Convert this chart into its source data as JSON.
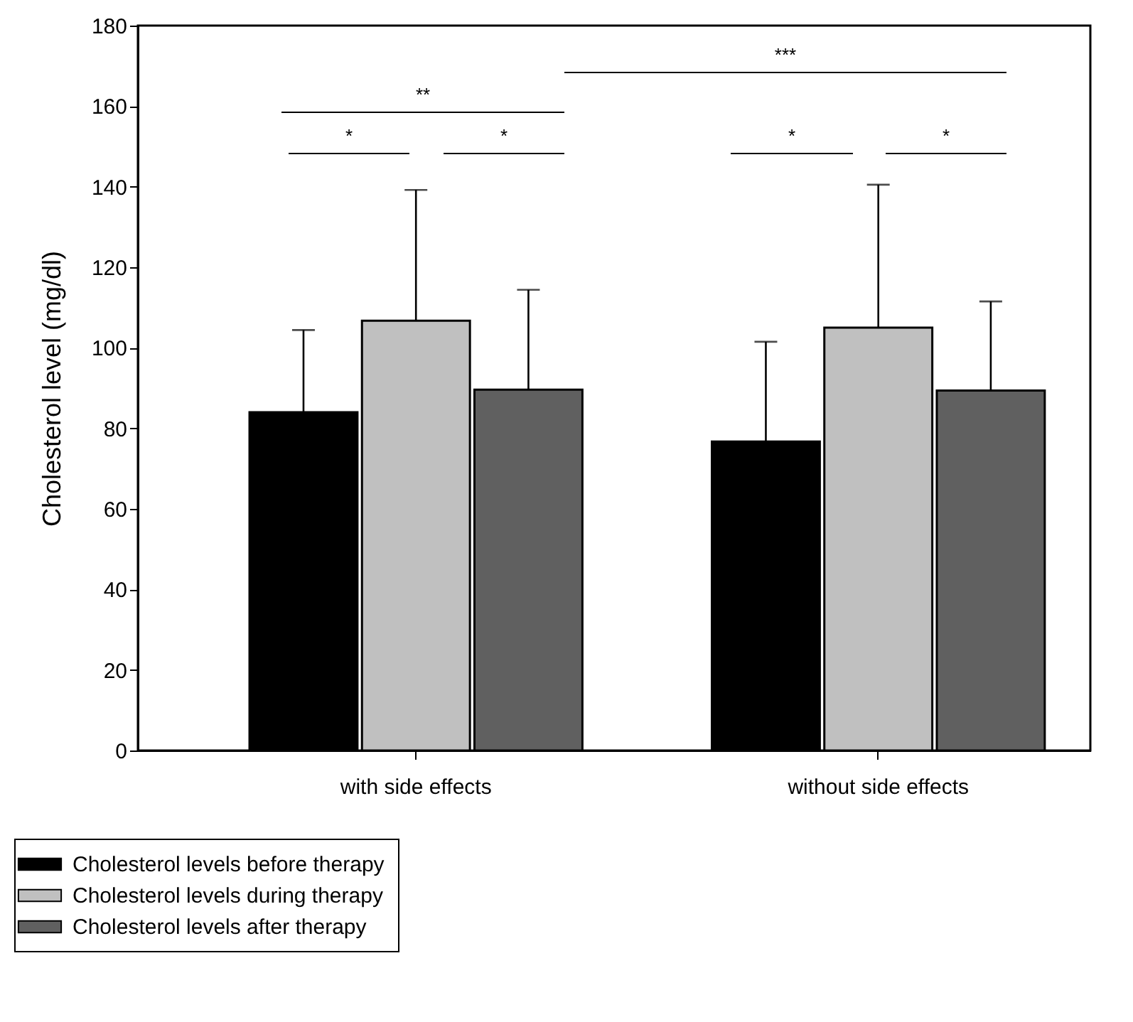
{
  "chart_data": {
    "type": "bar",
    "ylabel": "Cholesterol level (mg/dl)",
    "categories": [
      "with side effects",
      "without side effects"
    ],
    "ylim": [
      0,
      180
    ],
    "yticks": [
      0,
      20,
      40,
      60,
      80,
      100,
      120,
      140,
      160,
      180
    ],
    "legend": "bottom left",
    "series": [
      {
        "name": "Cholesterol levels before therapy",
        "color": "#000000",
        "values": [
          84,
          76.7
        ],
        "errors": [
          [
            84,
            104.4
          ],
          [
            76.7,
            101.5
          ]
        ]
      },
      {
        "name": "Cholesterol levels during therapy",
        "color": "#c0c0c0",
        "values": [
          106.7,
          105
        ],
        "errors": [
          [
            106.7,
            139.2
          ],
          [
            105,
            140.5
          ]
        ]
      },
      {
        "name": "Cholesterol levels after therapy",
        "color": "#606060",
        "values": [
          89.6,
          89.4
        ],
        "errors": [
          [
            89.6,
            114.4
          ],
          [
            89.4,
            111.5
          ]
        ]
      }
    ],
    "annotations": [
      "***",
      "**",
      "*",
      "*",
      "*",
      "*"
    ]
  }
}
